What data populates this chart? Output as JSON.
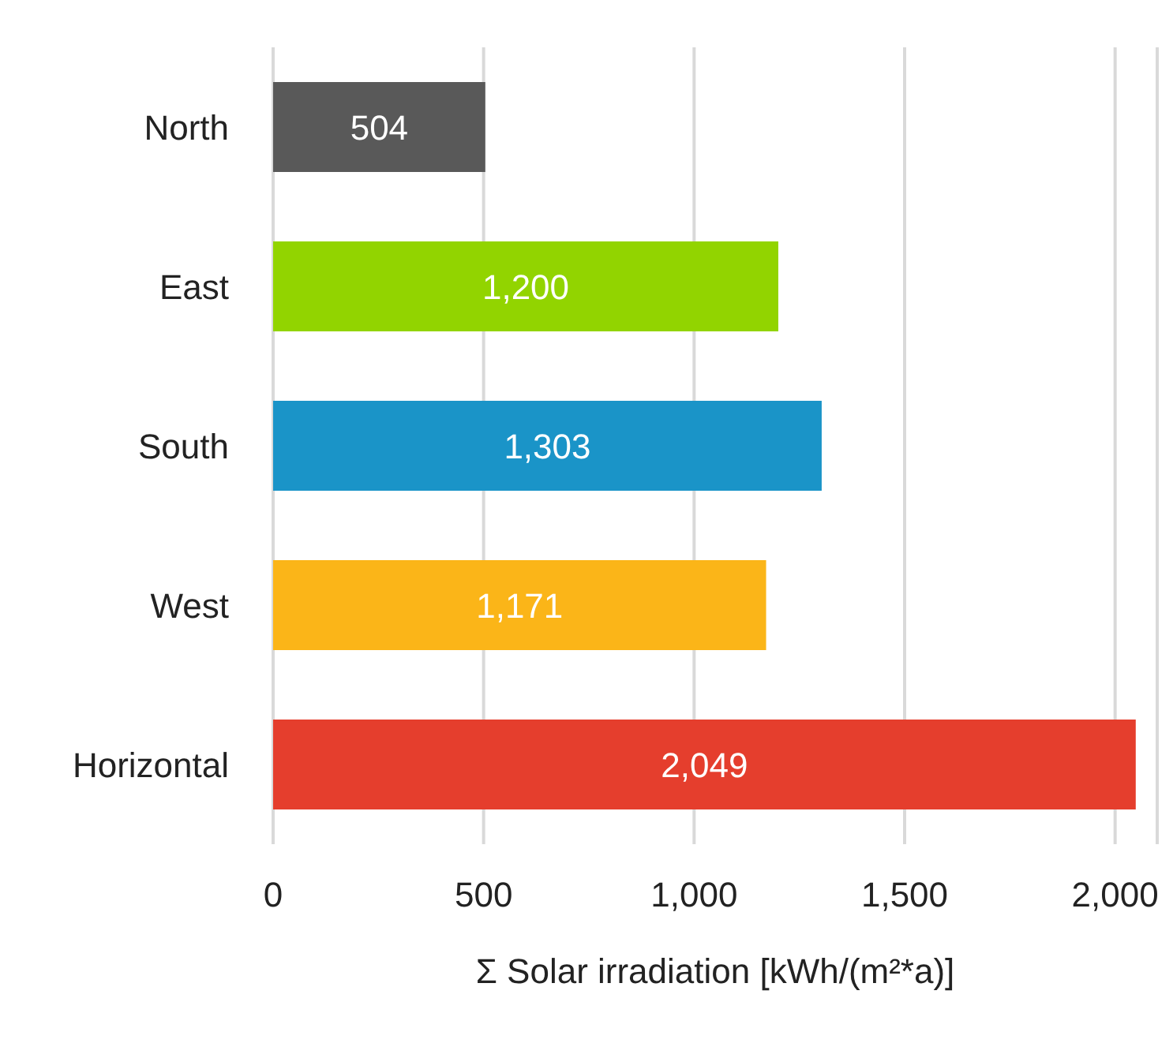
{
  "chart_data": {
    "type": "bar",
    "orientation": "horizontal",
    "xlabel": "Σ Solar irradiation [kWh/(m²*a)]",
    "categories": [
      "North",
      "East",
      "South",
      "West",
      "Horizontal"
    ],
    "values": [
      504,
      1200,
      1303,
      1171,
      2049
    ],
    "value_labels": [
      "504",
      "1,200",
      "1,303",
      "1,171",
      "2,049"
    ],
    "colors": [
      "#595959",
      "#92d400",
      "#1a94c8",
      "#fbb518",
      "#e53e2d"
    ],
    "xlim": [
      0,
      2100
    ],
    "xticks": [
      0,
      500,
      {
        "value": 1000,
        "label": "1,000"
      },
      {
        "value": 1500,
        "label": "1,500"
      },
      {
        "value": 2000,
        "label": "2,000"
      }
    ],
    "grid": "x",
    "legend": false
  }
}
